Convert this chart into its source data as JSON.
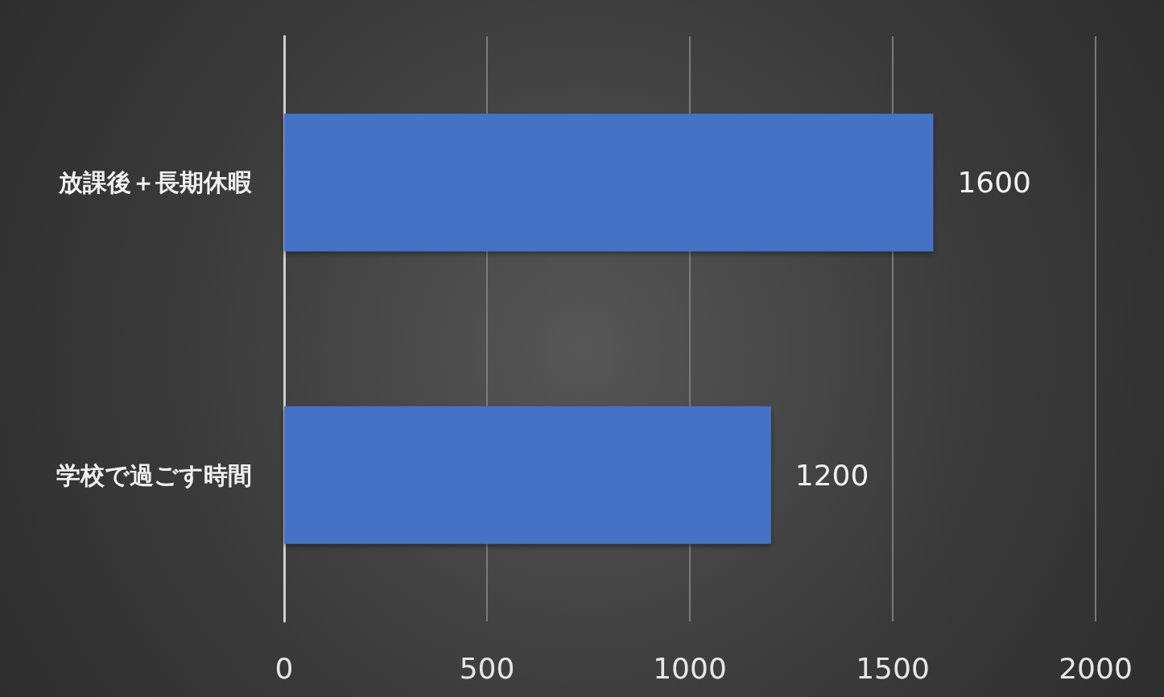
{
  "chart_data": {
    "type": "bar",
    "orientation": "horizontal",
    "categories": [
      "放課後＋長期休暇",
      "学校で過ごす時間"
    ],
    "values": [
      1600,
      1200
    ],
    "color": "#4472c4",
    "xlim": [
      0,
      2000
    ],
    "xticks": [
      0,
      500,
      1000,
      1500,
      2000
    ],
    "grid": "x",
    "data_labels": true
  }
}
